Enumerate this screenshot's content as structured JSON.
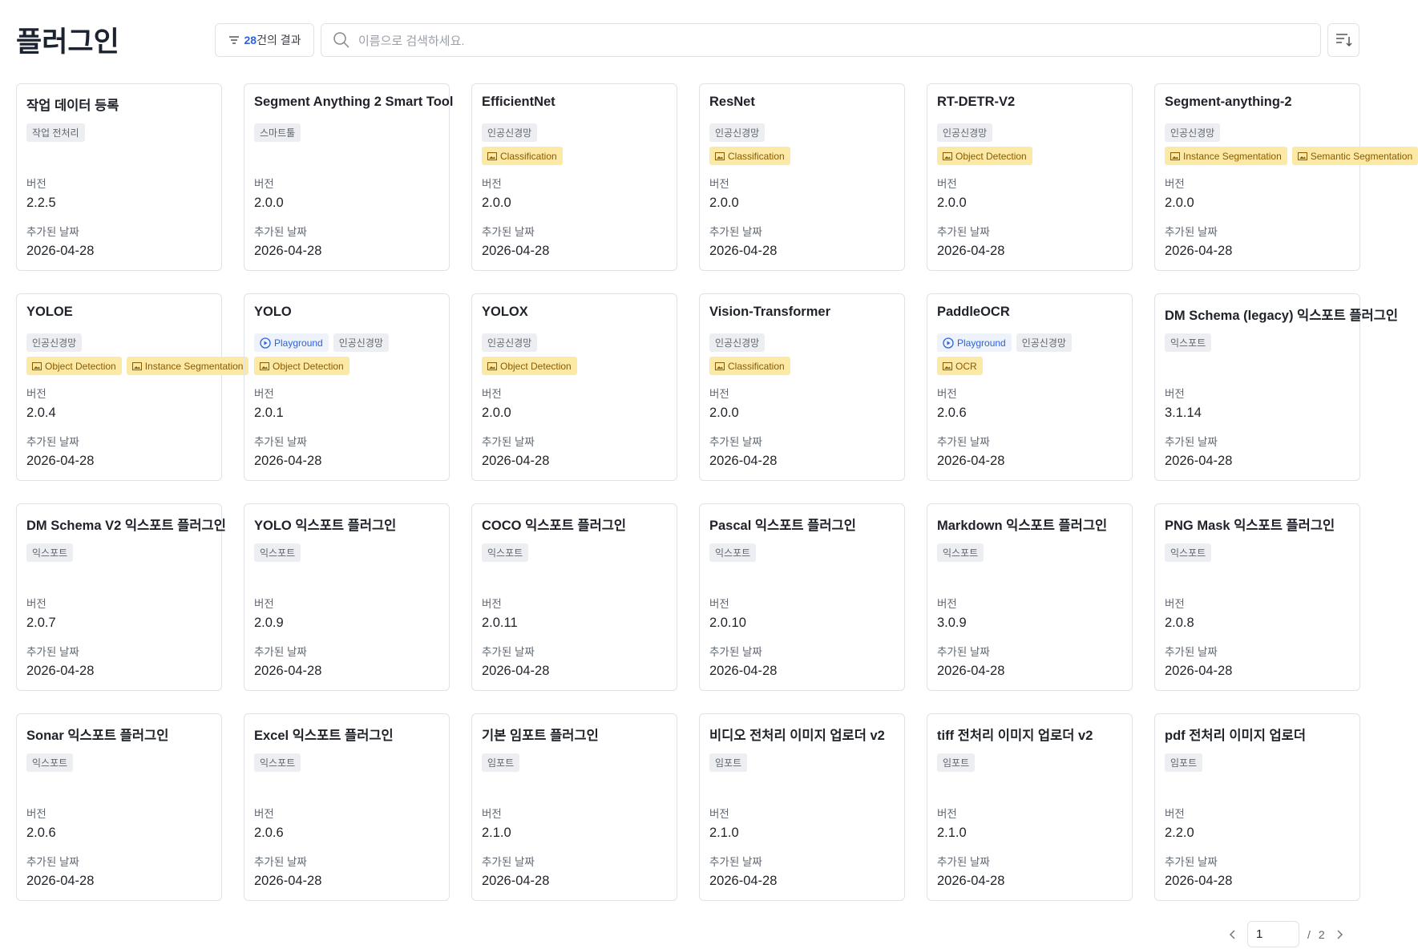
{
  "header": {
    "title": "플러그인",
    "results_count": "28",
    "results_suffix": "건의 결과",
    "search_placeholder": "이름으로 검색하세요."
  },
  "labels": {
    "version": "버전",
    "added_date": "추가된 날짜"
  },
  "cards": [
    {
      "name": "작업 데이터 등록",
      "tags": [
        "작업 전처리"
      ],
      "tasks": [],
      "version": "2.2.5",
      "date": "2026-04-28"
    },
    {
      "name": "Segment Anything 2 Smart Tool",
      "tags": [
        "스마트툴"
      ],
      "tasks": [],
      "version": "2.0.0",
      "date": "2026-04-28"
    },
    {
      "name": "EfficientNet",
      "tags": [
        "인공신경망"
      ],
      "tasks": [
        "Classification"
      ],
      "version": "2.0.0",
      "date": "2026-04-28"
    },
    {
      "name": "ResNet",
      "tags": [
        "인공신경망"
      ],
      "tasks": [
        "Classification"
      ],
      "version": "2.0.0",
      "date": "2026-04-28"
    },
    {
      "name": "RT-DETR-V2",
      "tags": [
        "인공신경망"
      ],
      "tasks": [
        "Object Detection"
      ],
      "version": "2.0.0",
      "date": "2026-04-28"
    },
    {
      "name": "Segment-anything-2",
      "tags": [
        "인공신경망"
      ],
      "tasks": [
        "Instance Segmentation",
        "Semantic Segmentation"
      ],
      "version": "2.0.0",
      "date": "2026-04-28"
    },
    {
      "name": "YOLOE",
      "tags": [
        "인공신경망"
      ],
      "tasks": [
        "Object Detection",
        "Instance Segmentation"
      ],
      "version": "2.0.4",
      "date": "2026-04-28"
    },
    {
      "name": "YOLO",
      "badges": [
        "Playground"
      ],
      "tags": [
        "인공신경망"
      ],
      "tasks": [
        "Object Detection"
      ],
      "version": "2.0.1",
      "date": "2026-04-28"
    },
    {
      "name": "YOLOX",
      "tags": [
        "인공신경망"
      ],
      "tasks": [
        "Object Detection"
      ],
      "version": "2.0.0",
      "date": "2026-04-28"
    },
    {
      "name": "Vision-Transformer",
      "tags": [
        "인공신경망"
      ],
      "tasks": [
        "Classification"
      ],
      "version": "2.0.0",
      "date": "2026-04-28"
    },
    {
      "name": "PaddleOCR",
      "badges": [
        "Playground"
      ],
      "tags": [
        "인공신경망"
      ],
      "tasks": [
        "OCR"
      ],
      "version": "2.0.6",
      "date": "2026-04-28"
    },
    {
      "name": "DM Schema (legacy) 익스포트 플러그인",
      "tags": [
        "익스포트"
      ],
      "tasks": [],
      "version": "3.1.14",
      "date": "2026-04-28"
    },
    {
      "name": "DM Schema V2 익스포트 플러그인",
      "tags": [
        "익스포트"
      ],
      "tasks": [],
      "version": "2.0.7",
      "date": "2026-04-28"
    },
    {
      "name": "YOLO 익스포트 플러그인",
      "tags": [
        "익스포트"
      ],
      "tasks": [],
      "version": "2.0.9",
      "date": "2026-04-28"
    },
    {
      "name": "COCO 익스포트 플러그인",
      "tags": [
        "익스포트"
      ],
      "tasks": [],
      "version": "2.0.11",
      "date": "2026-04-28"
    },
    {
      "name": "Pascal 익스포트 플러그인",
      "tags": [
        "익스포트"
      ],
      "tasks": [],
      "version": "2.0.10",
      "date": "2026-04-28"
    },
    {
      "name": "Markdown 익스포트 플러그인",
      "tags": [
        "익스포트"
      ],
      "tasks": [],
      "version": "3.0.9",
      "date": "2026-04-28"
    },
    {
      "name": "PNG Mask 익스포트 플러그인",
      "tags": [
        "익스포트"
      ],
      "tasks": [],
      "version": "2.0.8",
      "date": "2026-04-28"
    },
    {
      "name": "Sonar 익스포트 플러그인",
      "tags": [
        "익스포트"
      ],
      "tasks": [],
      "version": "2.0.6",
      "date": "2026-04-28"
    },
    {
      "name": "Excel 익스포트 플러그인",
      "tags": [
        "익스포트"
      ],
      "tasks": [],
      "version": "2.0.6",
      "date": "2026-04-28"
    },
    {
      "name": "기본 임포트 플러그인",
      "tags": [
        "임포트"
      ],
      "tasks": [],
      "version": "2.1.0",
      "date": "2026-04-28"
    },
    {
      "name": "비디오 전처리 이미지 업로더 v2",
      "tags": [
        "임포트"
      ],
      "tasks": [],
      "version": "2.1.0",
      "date": "2026-04-28"
    },
    {
      "name": "tiff 전처리 이미지 업로더 v2",
      "tags": [
        "임포트"
      ],
      "tasks": [],
      "version": "2.1.0",
      "date": "2026-04-28"
    },
    {
      "name": "pdf 전처리 이미지 업로더",
      "tags": [
        "임포트"
      ],
      "tasks": [],
      "version": "2.2.0",
      "date": "2026-04-28"
    }
  ],
  "pagination": {
    "current": "1",
    "separator": "/",
    "total": "2"
  }
}
